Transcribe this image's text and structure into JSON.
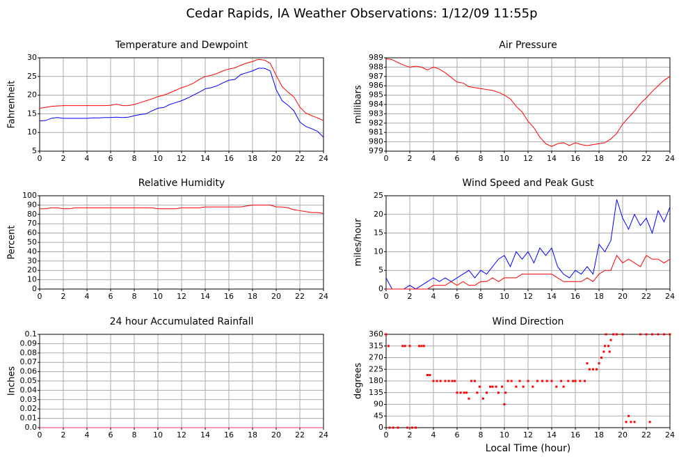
{
  "title": "Cedar Rapids, IA Weather Observations: 1/12/09 11:55p",
  "chart_data": [
    {
      "type": "line",
      "title": "Temperature and Dewpoint",
      "ylabel": "Fahrenheit",
      "x": [
        0,
        0.5,
        1,
        1.5,
        2,
        2.5,
        3,
        3.5,
        4,
        4.5,
        5,
        5.5,
        6,
        6.5,
        7,
        7.5,
        8,
        8.5,
        9,
        9.5,
        10,
        10.5,
        11,
        11.5,
        12,
        12.5,
        13,
        13.5,
        14,
        14.5,
        15,
        15.5,
        16,
        16.5,
        17,
        17.5,
        18,
        18.5,
        19,
        19.5,
        20,
        20.5,
        21,
        21.5,
        22,
        22.5,
        23,
        23.5,
        24
      ],
      "series": [
        {
          "color": "#ff0000",
          "values": [
            16.5,
            16.7,
            17,
            17.1,
            17.2,
            17.2,
            17.2,
            17.2,
            17.2,
            17.2,
            17.2,
            17.2,
            17.3,
            17.6,
            17.2,
            17.2,
            17.5,
            18,
            18.5,
            19,
            19.6,
            20,
            20.6,
            21.3,
            22,
            22.5,
            23.2,
            24.2,
            25,
            25.3,
            25.8,
            26.5,
            27,
            27.3,
            28,
            28.6,
            29,
            29.6,
            29.4,
            28.5,
            25.3,
            22.3,
            20.8,
            19.5,
            16.8,
            15.2,
            14.5,
            13.9,
            13.2
          ]
        },
        {
          "color": "#0000ff",
          "values": [
            13.1,
            13.2,
            13.8,
            14,
            13.8,
            13.8,
            13.8,
            13.8,
            13.8,
            13.9,
            13.9,
            14,
            14,
            14.1,
            14,
            14.1,
            14.5,
            14.8,
            15,
            15.8,
            16.5,
            16.7,
            17.5,
            18,
            18.5,
            19.2,
            20,
            20.8,
            21.7,
            22,
            22.5,
            23.3,
            24,
            24.2,
            25.5,
            26,
            26.5,
            27.2,
            27.2,
            26.5,
            21.5,
            18.5,
            17.3,
            15.8,
            12.8,
            11.6,
            11,
            10.3,
            8.7
          ]
        }
      ],
      "xlim": [
        0,
        24
      ],
      "xticks": [
        0,
        2,
        4,
        6,
        8,
        10,
        12,
        14,
        16,
        18,
        20,
        22,
        24
      ],
      "ylim": [
        5,
        30
      ],
      "yticks": [
        5,
        10,
        15,
        20,
        25,
        30
      ],
      "grid": true
    },
    {
      "type": "line",
      "title": "Air Pressure",
      "ylabel": "millibars",
      "x": [
        0,
        0.5,
        1,
        1.5,
        2,
        2.5,
        3,
        3.5,
        4,
        4.5,
        5,
        5.5,
        6,
        6.5,
        7,
        7.5,
        8,
        8.5,
        9,
        9.5,
        10,
        10.5,
        11,
        11.5,
        12,
        12.5,
        13,
        13.5,
        14,
        14.5,
        15,
        15.5,
        16,
        16.5,
        17,
        17.5,
        18,
        18.5,
        19,
        19.5,
        20,
        20.5,
        21,
        21.5,
        22,
        22.5,
        23,
        23.5,
        24
      ],
      "series": [
        {
          "color": "#ff0000",
          "values": [
            988.9,
            988.8,
            988.5,
            988.2,
            988,
            988.1,
            988,
            987.7,
            988,
            987.8,
            987.4,
            986.9,
            986.4,
            986.3,
            985.9,
            985.8,
            985.7,
            985.6,
            985.5,
            985.3,
            985,
            984.6,
            983.8,
            983.2,
            982.2,
            981.5,
            980.5,
            979.8,
            979.5,
            979.8,
            979.9,
            979.6,
            979.9,
            979.7,
            979.6,
            979.7,
            979.8,
            979.9,
            980.3,
            980.9,
            981.9,
            982.6,
            983.3,
            984.1,
            984.7,
            985.4,
            986,
            986.6,
            987
          ]
        }
      ],
      "xlim": [
        0,
        24
      ],
      "xticks": [
        0,
        2,
        4,
        6,
        8,
        10,
        12,
        14,
        16,
        18,
        20,
        22,
        24
      ],
      "ylim": [
        979,
        989
      ],
      "yticks": [
        979,
        980,
        981,
        982,
        983,
        984,
        985,
        986,
        987,
        988,
        989
      ],
      "grid": true
    },
    {
      "type": "line",
      "title": "Relative Humidity",
      "ylabel": "Percent",
      "x": [
        0,
        0.5,
        1,
        1.5,
        2,
        2.5,
        3,
        3.5,
        4,
        4.5,
        5,
        5.5,
        6,
        6.5,
        7,
        7.5,
        8,
        8.5,
        9,
        9.5,
        10,
        10.5,
        11,
        11.5,
        12,
        12.5,
        13,
        13.5,
        14,
        14.5,
        15,
        15.5,
        16,
        16.5,
        17,
        17.5,
        18,
        18.5,
        19,
        19.5,
        20,
        20.5,
        21,
        21.5,
        22,
        22.5,
        23,
        23.5,
        24
      ],
      "series": [
        {
          "color": "#ff0000",
          "values": [
            86,
            86,
            87,
            87,
            86,
            86,
            87,
            87,
            87,
            87,
            87,
            87,
            87,
            87,
            87,
            87,
            87,
            87,
            87,
            87,
            86,
            86,
            86,
            86,
            87,
            87,
            87,
            87,
            88,
            88,
            88,
            88,
            88,
            88,
            88,
            89,
            90,
            90,
            90,
            90,
            88,
            88,
            87,
            85,
            84,
            83,
            82,
            82,
            81
          ]
        }
      ],
      "xlim": [
        0,
        24
      ],
      "xticks": [
        0,
        2,
        4,
        6,
        8,
        10,
        12,
        14,
        16,
        18,
        20,
        22,
        24
      ],
      "ylim": [
        0,
        100
      ],
      "yticks": [
        0,
        10,
        20,
        30,
        40,
        50,
        60,
        70,
        80,
        90,
        100
      ],
      "grid": true
    },
    {
      "type": "line",
      "title": "Wind Speed and Peak Gust",
      "ylabel": "miles/hour",
      "x": [
        0,
        0.5,
        1,
        1.5,
        2,
        2.5,
        3,
        3.5,
        4,
        4.5,
        5,
        5.5,
        6,
        6.5,
        7,
        7.5,
        8,
        8.5,
        9,
        9.5,
        10,
        10.5,
        11,
        11.5,
        12,
        12.5,
        13,
        13.5,
        14,
        14.5,
        15,
        15.5,
        16,
        16.5,
        17,
        17.5,
        18,
        18.5,
        19,
        19.5,
        20,
        20.5,
        21,
        21.5,
        22,
        22.5,
        23,
        23.5,
        24
      ],
      "series": [
        {
          "color": "#0000ff",
          "values": [
            3,
            0,
            0,
            0,
            1,
            0,
            1,
            2,
            3,
            2,
            3,
            2,
            3,
            4,
            5,
            3,
            5,
            4,
            6,
            8,
            9,
            6,
            10,
            8,
            10,
            7,
            11,
            9,
            11,
            6,
            4,
            3,
            5,
            4,
            6,
            4,
            12,
            10,
            13,
            24,
            19,
            16,
            20,
            17,
            19,
            15,
            21,
            18,
            22
          ]
        },
        {
          "color": "#ff0000",
          "values": [
            0,
            0,
            0,
            0,
            0,
            0,
            0,
            0,
            1,
            1,
            1,
            2,
            1,
            2,
            1,
            1,
            2,
            2,
            3,
            2,
            3,
            3,
            3,
            4,
            4,
            4,
            4,
            4,
            4,
            3,
            2,
            2,
            2,
            2,
            3,
            2,
            4,
            5,
            5,
            9,
            7,
            8,
            7,
            6,
            9,
            8,
            8,
            7,
            8
          ]
        }
      ],
      "xlim": [
        0,
        24
      ],
      "xticks": [
        0,
        2,
        4,
        6,
        8,
        10,
        12,
        14,
        16,
        18,
        20,
        22,
        24
      ],
      "ylim": [
        0,
        25
      ],
      "yticks": [
        0,
        5,
        10,
        15,
        20,
        25
      ],
      "grid": true
    },
    {
      "type": "line",
      "title": "24 hour Accumulated Rainfall",
      "ylabel": "Inches",
      "x": [
        0,
        24
      ],
      "series": [
        {
          "color": "#e0306a",
          "values": [
            0,
            0
          ]
        }
      ],
      "xlim": [
        0,
        24
      ],
      "xticks": [
        0,
        2,
        4,
        6,
        8,
        10,
        12,
        14,
        16,
        18,
        20,
        22,
        24
      ],
      "ylim": [
        0,
        0.1
      ],
      "yticks": [
        {
          "value": 0,
          "label": "0.0"
        },
        0.01,
        0.02,
        0.03,
        0.04,
        0.05,
        0.06,
        0.07,
        0.08,
        0.09,
        0.1
      ],
      "grid": true
    },
    {
      "type": "scatter",
      "title": "Wind Direction",
      "ylabel": "degrees",
      "xlabel": "Local Time (hour)",
      "x": [
        0,
        0.2,
        0.3,
        0.6,
        1,
        1.4,
        1.6,
        1.8,
        2,
        2.2,
        2.5,
        2.8,
        3,
        3.2,
        3.5,
        3.7,
        4,
        4.3,
        4.6,
        5,
        5.3,
        5.6,
        5.8,
        6,
        6.3,
        6.6,
        6.8,
        7,
        7.2,
        7.5,
        7.7,
        7.9,
        8.2,
        8.5,
        8.8,
        9,
        9.3,
        9.5,
        9.8,
        10,
        10.1,
        10.3,
        10.6,
        11,
        11.3,
        11.6,
        12,
        12.4,
        12.8,
        13.2,
        13.6,
        14,
        14.4,
        14.8,
        15,
        15.4,
        15.8,
        16,
        16.4,
        16.8,
        17,
        17.2,
        17.5,
        17.8,
        18,
        18.2,
        18.4,
        18.5,
        18.6,
        18.8,
        18.9,
        19,
        19.2,
        19.5,
        20,
        20.3,
        20.5,
        20.7,
        21,
        21.5,
        22,
        22.3,
        22.5,
        23,
        23.5,
        24
      ],
      "series": [
        {
          "color": "#ff0000",
          "values": [
            360,
            315,
            0,
            0,
            0,
            315,
            315,
            0,
            315,
            0,
            0,
            315,
            315,
            315,
            203,
            203,
            180,
            180,
            180,
            180,
            180,
            180,
            180,
            135,
            135,
            135,
            135,
            112,
            180,
            180,
            135,
            158,
            112,
            135,
            158,
            158,
            158,
            135,
            158,
            90,
            135,
            180,
            180,
            158,
            180,
            158,
            180,
            158,
            180,
            180,
            180,
            180,
            158,
            180,
            158,
            180,
            180,
            180,
            180,
            180,
            248,
            225,
            225,
            225,
            248,
            270,
            293,
            315,
            360,
            315,
            293,
            338,
            360,
            360,
            360,
            22,
            45,
            22,
            22,
            360,
            360,
            22,
            360,
            360,
            360,
            360
          ]
        }
      ],
      "xlim": [
        0,
        24
      ],
      "xticks": [
        0,
        2,
        4,
        6,
        8,
        10,
        12,
        14,
        16,
        18,
        20,
        22,
        24
      ],
      "ylim": [
        0,
        360
      ],
      "yticks": [
        0,
        45,
        90,
        135,
        180,
        225,
        270,
        315,
        360
      ],
      "grid": true
    }
  ]
}
